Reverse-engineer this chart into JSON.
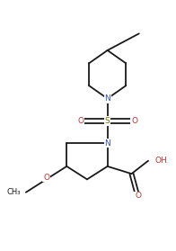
{
  "background_color": "#ffffff",
  "bond_color": "#1a1a1a",
  "N_color": "#3050c8",
  "O_color": "#c03030",
  "S_color": "#707000",
  "figsize": [
    1.96,
    2.79
  ],
  "dpi": 100,
  "lw": 1.3,
  "fs": 6.5,
  "xlim": [
    0.0,
    9.5
  ],
  "ylim": [
    0.0,
    13.5
  ]
}
